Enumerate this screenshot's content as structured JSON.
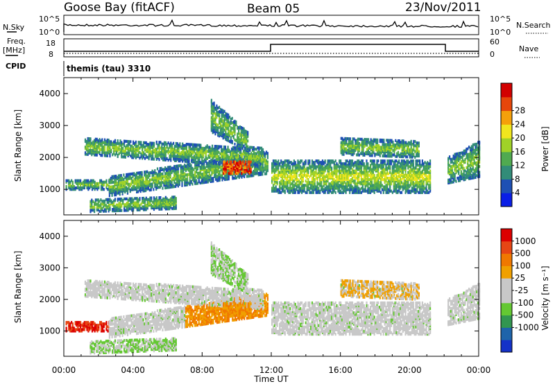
{
  "header": {
    "station": "Goose Bay (fitACF)",
    "beam": "Beam 05",
    "date": "23/Nov/2011"
  },
  "top_panels": {
    "nsky_label": "N.Sky",
    "nsky_ticks": [
      "10^5",
      "10^0"
    ],
    "nsearch_label": "N.Search",
    "nsearch_ticks": [
      "10^5",
      "10^0"
    ],
    "freq_label": "Freq.",
    "freq_unit": "[MHz]",
    "freq_ticks": [
      "18",
      "8"
    ],
    "nave_label": "Nave",
    "nave_ticks": [
      "60",
      "0"
    ],
    "cpid_label": "CPID",
    "cpid_value": "themis (tau) 3310"
  },
  "chart_data": [
    {
      "type": "heatmap",
      "name": "power-panel",
      "ylabel": "Slant Range [km]",
      "yticks": [
        "1000",
        "2000",
        "3000",
        "4000"
      ],
      "ylim": [
        200,
        4500
      ],
      "xlim": [
        0,
        24
      ],
      "colorbar": {
        "label": "Power [dB]",
        "ticks": [
          "4",
          "8",
          "12",
          "16",
          "20",
          "24",
          "28"
        ],
        "colors": [
          "#0a1ee6",
          "#1e50b4",
          "#328c78",
          "#50aa50",
          "#a0d228",
          "#f0e61e",
          "#f5a00a",
          "#e6460a",
          "#d20000"
        ]
      }
    },
    {
      "type": "heatmap",
      "name": "velocity-panel",
      "ylabel": "Slant Range [km]",
      "yticks": [
        "1000",
        "2000",
        "3000",
        "4000"
      ],
      "ylim": [
        200,
        4500
      ],
      "xlim": [
        0,
        24
      ],
      "colorbar": {
        "label": "Velocity [m s⁻¹]",
        "ticks": [
          "1000",
          "500",
          "100",
          "25",
          "-25",
          "-100",
          "-500",
          "-1000"
        ],
        "colors": [
          "#1432c8",
          "#1e64aa",
          "#329650",
          "#64c832",
          "#c8c8c8",
          "#c8c8c8",
          "#f0a000",
          "#f07800",
          "#e64614",
          "#dc0000"
        ]
      },
      "xticks": [
        "00:00",
        "04:00",
        "08:00",
        "12:00",
        "16:00",
        "20:00",
        "00:00"
      ],
      "xlabel": "Time UT"
    }
  ]
}
